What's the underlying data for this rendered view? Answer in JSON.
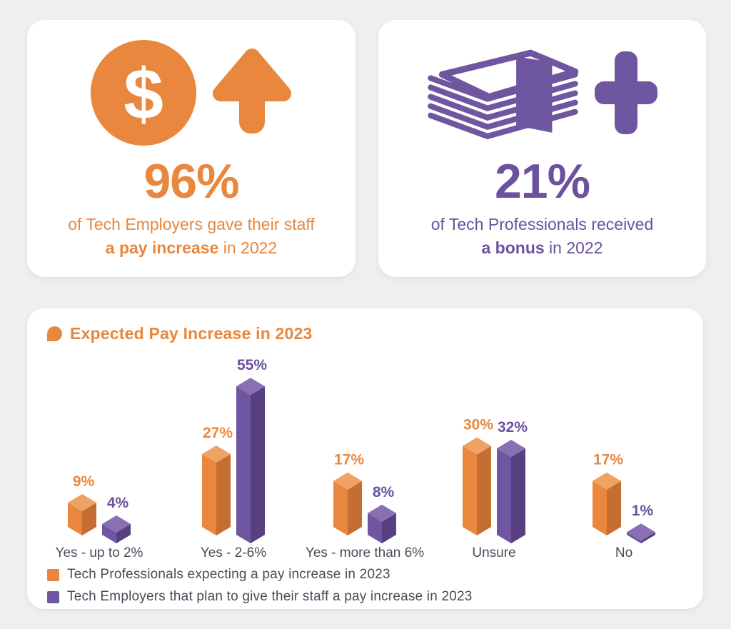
{
  "palette": {
    "background": "#efefef",
    "card": "#ffffff",
    "orange": "#E8873D",
    "orange_dark": "#C56E31",
    "orange_top": "#EFA261",
    "orange_text": "#E8873D",
    "purple": "#6E56A0",
    "purple_dark": "#57407F",
    "purple_top": "#8970B2",
    "purple_text": "#6B519E",
    "neutral_text": "#4E4858"
  },
  "stat_cards": [
    {
      "id": "pay-increase-2022",
      "accent": "#E8873D",
      "icons": [
        "dollar-coin-icon",
        "arrow-up-icon"
      ],
      "value": "96%",
      "line1": "of Tech Employers gave their staff",
      "bold_text": "a pay increase",
      "line_rest": " in 2022"
    },
    {
      "id": "bonus-2022",
      "accent": "#6E56A0",
      "icons": [
        "money-stack-icon",
        "plus-icon"
      ],
      "value": "21%",
      "line1": "of Tech Professionals received",
      "bold_text": "a bonus",
      "line_rest": " in 2022"
    }
  ],
  "chart_card": {
    "title": "Expected Pay Increase in 2023",
    "title_icon": "bubble-icon"
  },
  "chart_data": {
    "type": "bar",
    "variant": "3d-isometric-column-pairs",
    "title": "Expected Pay Increase in 2023",
    "categories": [
      "Yes - up to 2%",
      "Yes - 2-6%",
      "Yes - more than 6%",
      "Unsure",
      "No"
    ],
    "series": [
      {
        "name": "Tech Professionals expecting a pay increase in 2023",
        "color": "#E8873D",
        "color_dark": "#C56E31",
        "color_top": "#EFA261",
        "label_color": "#E8873D",
        "values": [
          9,
          27,
          17,
          30,
          17
        ]
      },
      {
        "name": "Tech Employers that plan to give their staff a pay increase in 2023",
        "color": "#6E56A0",
        "color_dark": "#57407F",
        "color_top": "#8970B2",
        "label_color": "#6B519E",
        "values": [
          4,
          55,
          8,
          32,
          1
        ]
      }
    ],
    "value_suffix": "%",
    "ylim": [
      0,
      60
    ],
    "grid": false,
    "axes_shown": false,
    "data_labels": "above-bars",
    "legend_position": "bottom-left"
  }
}
